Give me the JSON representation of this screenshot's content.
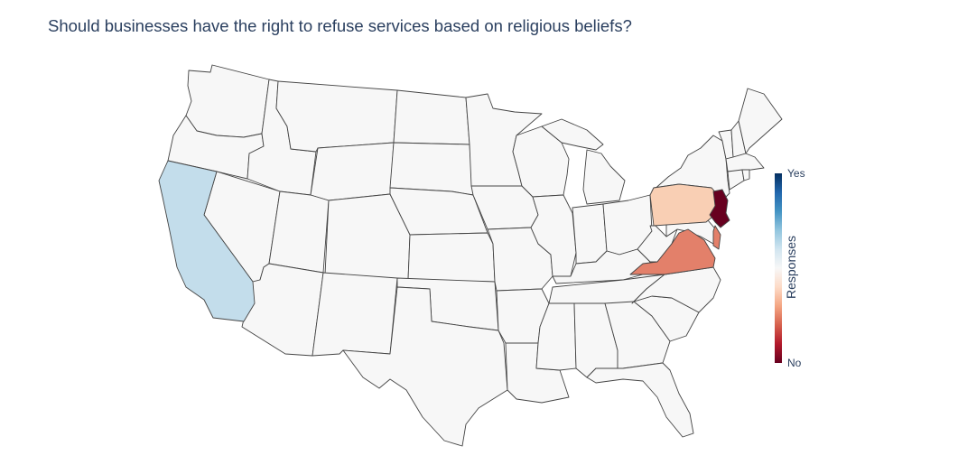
{
  "chart_data": {
    "type": "choropleth",
    "title": "Should businesses have the right to refuse services based on religious beliefs?",
    "scope": "usa",
    "colorscale": [
      "#67001f",
      "#b2182b",
      "#d6604d",
      "#f4a582",
      "#fddbc7",
      "#f7f7f7",
      "#d1e5f0",
      "#92c5de",
      "#4393c3",
      "#2166ac",
      "#053061"
    ],
    "default_color": "#f7f7f7",
    "colorbar": {
      "title": "Responses",
      "range": [
        0,
        1
      ],
      "ticks": [
        {
          "value": 1,
          "label": "Yes"
        },
        {
          "value": 0,
          "label": "No"
        }
      ]
    },
    "states": [
      {
        "state": "California",
        "value": 0.72,
        "color": "#c3ddeb"
      },
      {
        "state": "Pennsylvania",
        "value": 0.4,
        "color": "#f9cfb4"
      },
      {
        "state": "Virginia",
        "value": 0.24,
        "color": "#e3806a"
      },
      {
        "state": "Delaware",
        "value": 0.24,
        "color": "#e3806a"
      },
      {
        "state": "New Jersey",
        "value": 0.0,
        "color": "#67001f"
      }
    ]
  }
}
